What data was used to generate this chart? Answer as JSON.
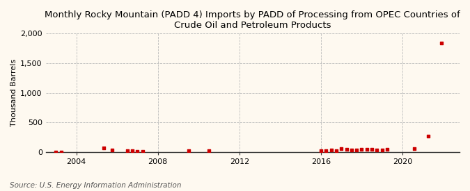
{
  "title": "Monthly Rocky Mountain (PADD 4) Imports by PADD of Processing from OPEC Countries of\nCrude Oil and Petroleum Products",
  "ylabel": "Thousand Barrels",
  "source": "Source: U.S. Energy Information Administration",
  "background_color": "#fef9f0",
  "plot_bg_color": "#fef9f0",
  "ylim": [
    0,
    2000
  ],
  "yticks": [
    0,
    500,
    1000,
    1500,
    2000
  ],
  "ytick_labels": [
    "0",
    "500",
    "1,000",
    "1,500",
    "2,000"
  ],
  "grid_color": "#bbbbbb",
  "marker_color": "#cc0000",
  "data_points": [
    [
      2003.0,
      4
    ],
    [
      2003.25,
      3
    ],
    [
      2005.33,
      70
    ],
    [
      2005.75,
      35
    ],
    [
      2006.5,
      20
    ],
    [
      2006.75,
      18
    ],
    [
      2007.0,
      17
    ],
    [
      2007.25,
      12
    ],
    [
      2009.5,
      18
    ],
    [
      2010.5,
      18
    ],
    [
      2016.0,
      20
    ],
    [
      2016.25,
      25
    ],
    [
      2016.5,
      35
    ],
    [
      2016.75,
      28
    ],
    [
      2017.0,
      60
    ],
    [
      2017.25,
      45
    ],
    [
      2017.5,
      40
    ],
    [
      2017.75,
      35
    ],
    [
      2018.0,
      45
    ],
    [
      2018.25,
      50
    ],
    [
      2018.5,
      45
    ],
    [
      2018.75,
      40
    ],
    [
      2019.0,
      38
    ],
    [
      2019.25,
      45
    ],
    [
      2020.58,
      55
    ],
    [
      2021.25,
      270
    ],
    [
      2021.92,
      1840
    ]
  ],
  "xticks": [
    2004,
    2008,
    2012,
    2016,
    2020
  ],
  "xlim": [
    2002.5,
    2022.8
  ],
  "title_fontsize": 9.5,
  "axis_fontsize": 8,
  "tick_fontsize": 8,
  "source_fontsize": 7.5
}
